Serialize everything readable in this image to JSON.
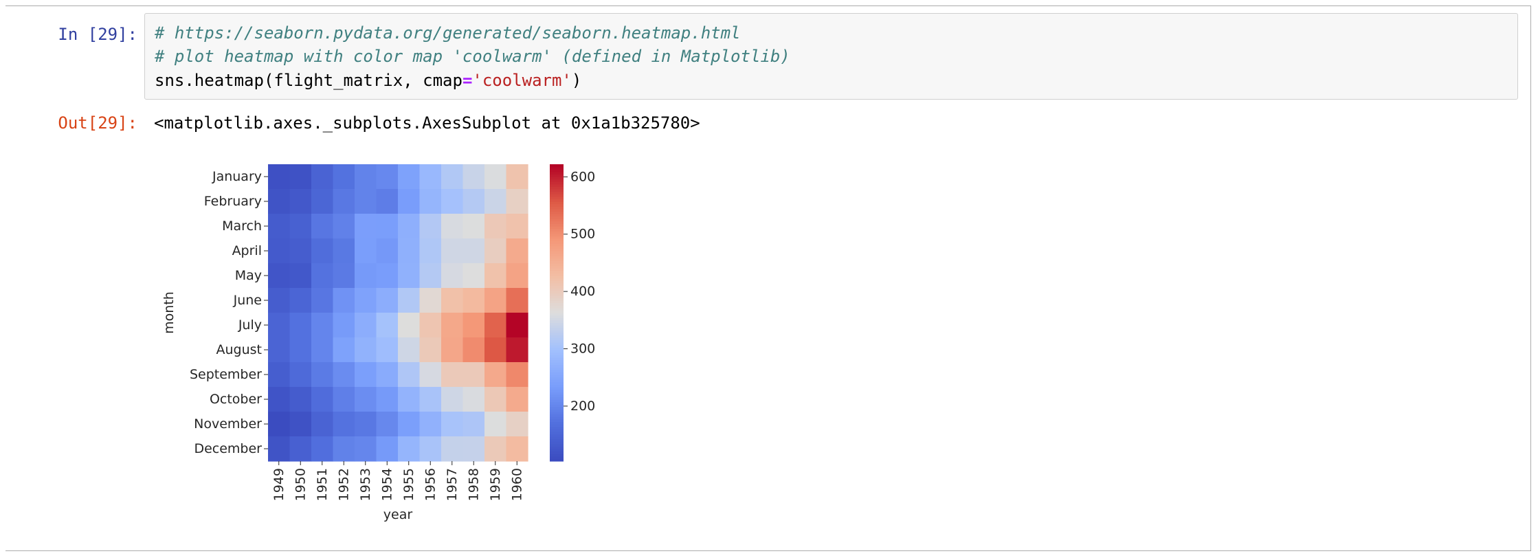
{
  "cell": {
    "in_prompt": "In [29]:",
    "out_prompt": "Out[29]:",
    "code": {
      "line1": "# https://seaborn.pydata.org/generated/seaborn.heatmap.html",
      "line2": "# plot heatmap with color map 'coolwarm' (defined in Matplotlib)",
      "line3_a": "sns.heatmap(flight_matrix, cmap",
      "line3_op": "=",
      "line3_str": "'coolwarm'",
      "line3_b": ")"
    },
    "output_text": "<matplotlib.axes._subplots.AxesSubplot at 0x1a1b325780>"
  },
  "chart_data": {
    "type": "heatmap",
    "title": "",
    "xlabel": "year",
    "ylabel": "month",
    "colormap": "coolwarm",
    "colorbar_ticks": [
      200,
      300,
      400,
      500,
      600
    ],
    "vmin": 104,
    "vmax": 622,
    "x": [
      "1949",
      "1950",
      "1951",
      "1952",
      "1953",
      "1954",
      "1955",
      "1956",
      "1957",
      "1958",
      "1959",
      "1960"
    ],
    "y": [
      "January",
      "February",
      "March",
      "April",
      "May",
      "June",
      "July",
      "August",
      "September",
      "October",
      "November",
      "December"
    ],
    "values": [
      [
        112,
        115,
        145,
        171,
        196,
        204,
        242,
        284,
        315,
        340,
        360,
        417
      ],
      [
        118,
        126,
        150,
        180,
        196,
        188,
        233,
        277,
        301,
        318,
        342,
        391
      ],
      [
        132,
        141,
        178,
        193,
        236,
        235,
        267,
        317,
        356,
        362,
        406,
        419
      ],
      [
        129,
        135,
        163,
        181,
        235,
        227,
        269,
        313,
        348,
        348,
        396,
        461
      ],
      [
        121,
        125,
        172,
        183,
        229,
        234,
        270,
        318,
        355,
        363,
        420,
        472
      ],
      [
        135,
        149,
        178,
        218,
        243,
        264,
        315,
        374,
        422,
        435,
        472,
        535
      ],
      [
        148,
        170,
        199,
        230,
        264,
        302,
        364,
        413,
        465,
        491,
        548,
        622
      ],
      [
        148,
        170,
        199,
        242,
        272,
        293,
        347,
        405,
        467,
        505,
        559,
        606
      ],
      [
        136,
        158,
        184,
        209,
        237,
        259,
        312,
        355,
        404,
        404,
        463,
        508
      ],
      [
        119,
        133,
        162,
        191,
        211,
        229,
        274,
        306,
        347,
        359,
        407,
        461
      ],
      [
        104,
        114,
        146,
        172,
        180,
        203,
        237,
        271,
        305,
        310,
        362,
        390
      ],
      [
        118,
        140,
        166,
        194,
        201,
        229,
        278,
        306,
        336,
        337,
        405,
        432
      ]
    ]
  }
}
